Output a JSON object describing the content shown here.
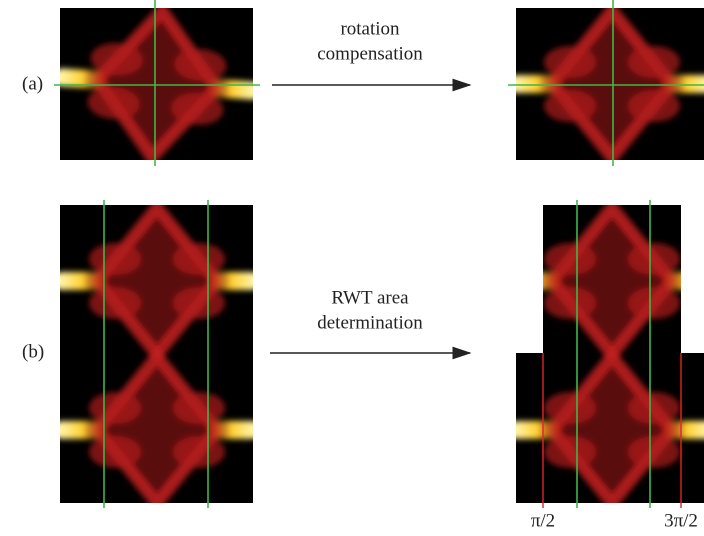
{
  "panels": {
    "a": {
      "label": "(a)",
      "arrow_text": [
        "rotation",
        "compensation"
      ]
    },
    "b": {
      "label": "(b)",
      "arrow_text": [
        "RWT area",
        "determination"
      ],
      "ticks": [
        "π/2",
        "3π/2"
      ]
    }
  }
}
